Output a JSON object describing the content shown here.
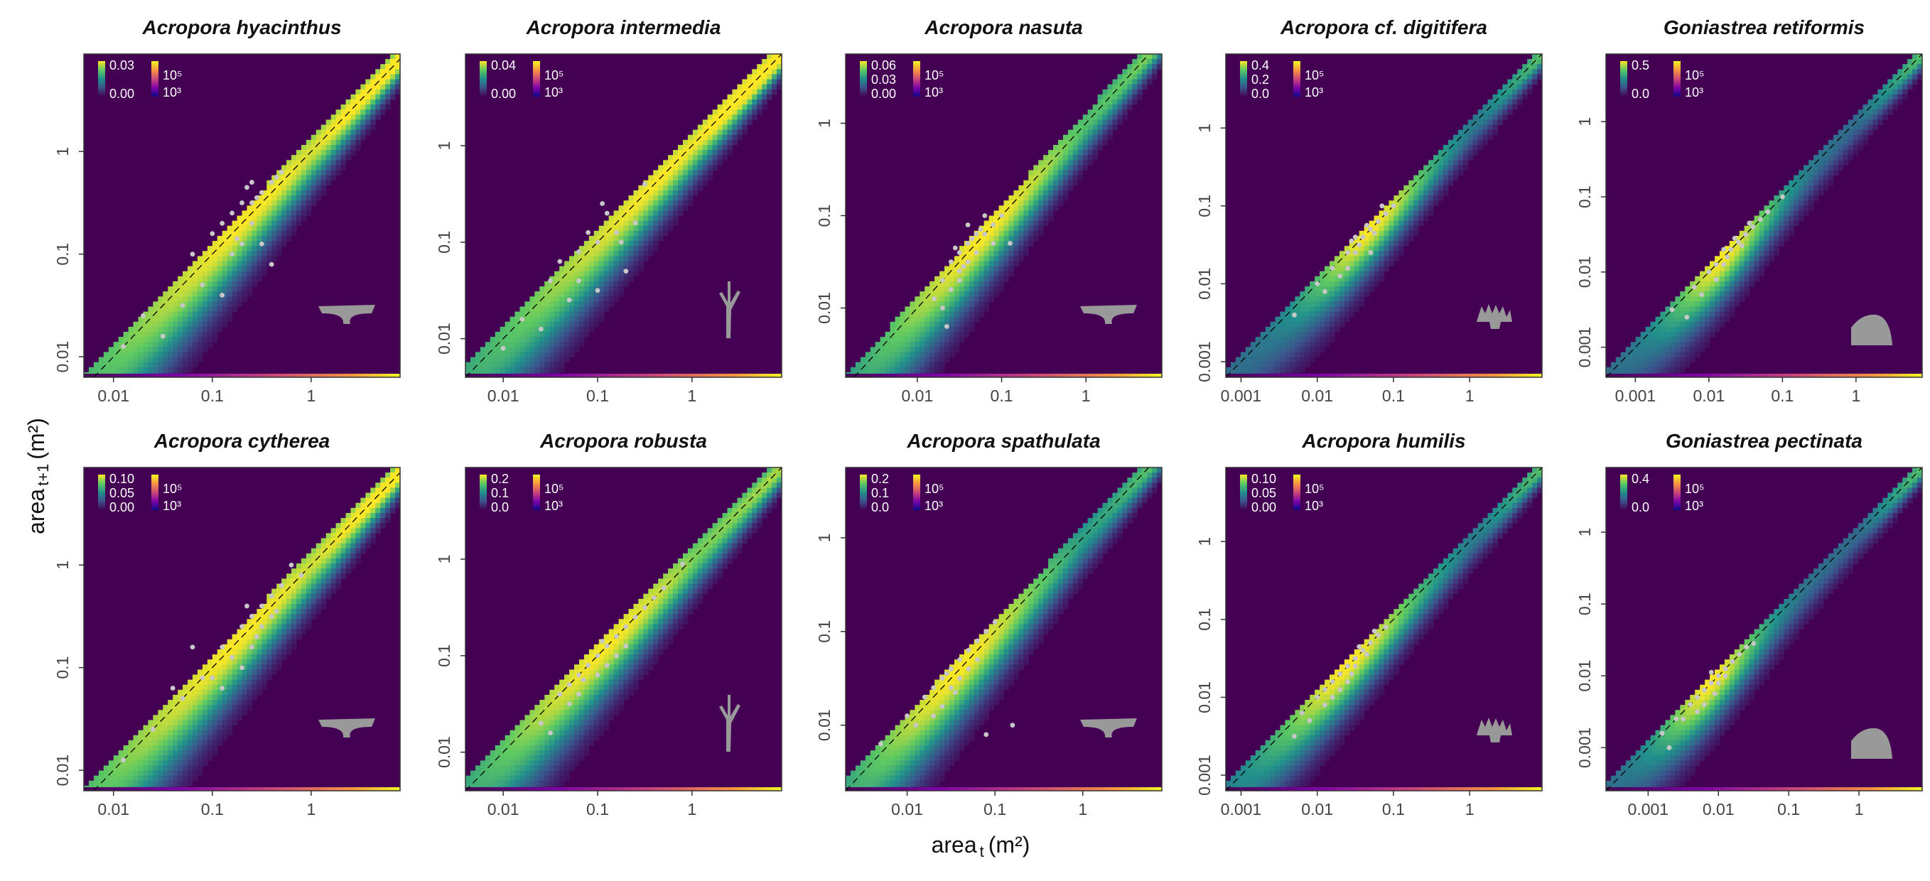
{
  "figure": {
    "xlabel": "area",
    "xlabel_sub": "t",
    "xlabel_unit": "(m²)",
    "ylabel": "area",
    "ylabel_sub": "t+1",
    "ylabel_unit": "(m²)"
  },
  "colors": {
    "background": "#440154",
    "point": "#c8c8c8",
    "silhouette": "#999999",
    "diagonal": "#000000"
  },
  "chart_data": [
    {
      "type": "heatmap",
      "title": "Acropora hyacinthus",
      "xlim_log10": [
        -2.3,
        0.9
      ],
      "ylim_log10": [
        -2.2,
        0.95
      ],
      "xticks": [
        "0.01",
        "0.1",
        "1"
      ],
      "yticks": [
        "0.01",
        "0.1",
        "1"
      ],
      "legend_density": [
        "0.03",
        "0.00"
      ],
      "legend_count": [
        "10⁵",
        "10³"
      ],
      "density_center_log10": -0.6,
      "density_spread": 0.9,
      "silhouette": "table",
      "points": [
        [
          -1.7,
          -1.6
        ],
        [
          -1.2,
          -1.0
        ],
        [
          -1.0,
          -0.8
        ],
        [
          -0.8,
          -0.6
        ],
        [
          -0.6,
          -0.5
        ],
        [
          -0.5,
          -0.4
        ],
        [
          -0.7,
          -0.9
        ],
        [
          -1.1,
          -1.3
        ],
        [
          -0.9,
          -0.7
        ],
        [
          -0.4,
          -0.3
        ],
        [
          -0.3,
          -0.2
        ],
        [
          -0.6,
          -0.7
        ],
        [
          -0.8,
          -1.0
        ],
        [
          -1.3,
          -1.5
        ],
        [
          -0.5,
          -0.9
        ],
        [
          -0.7,
          -0.5
        ],
        [
          -1.5,
          -1.8
        ],
        [
          -0.4,
          -1.1
        ],
        [
          -0.9,
          -1.4
        ],
        [
          -0.6,
          -0.3
        ],
        [
          -0.55,
          -0.45
        ],
        [
          -0.65,
          -0.35
        ],
        [
          -0.35,
          -0.25
        ],
        [
          -1.9,
          -1.9
        ],
        [
          -0.75,
          -0.85
        ]
      ]
    },
    {
      "type": "heatmap",
      "title": "Acropora intermedia",
      "xlim_log10": [
        -2.4,
        0.95
      ],
      "ylim_log10": [
        -2.4,
        0.95
      ],
      "xticks": [
        "0.01",
        "0.1",
        "1"
      ],
      "yticks": [
        "0.01",
        "0.1",
        "1"
      ],
      "legend_density": [
        "0.04",
        "0.00"
      ],
      "legend_count": [
        "10⁵",
        "10³"
      ],
      "density_center_log10": -0.3,
      "density_spread": 1.0,
      "silhouette": "branch",
      "points": [
        [
          -1.8,
          -1.8
        ],
        [
          -1.5,
          -1.4
        ],
        [
          -1.2,
          -1.1
        ],
        [
          -1.0,
          -1.0
        ],
        [
          -0.8,
          -0.9
        ],
        [
          -1.1,
          -0.9
        ],
        [
          -0.9,
          -0.7
        ],
        [
          -0.6,
          -0.8
        ],
        [
          -1.3,
          -1.6
        ],
        [
          -1.4,
          -1.2
        ],
        [
          -0.7,
          -1.3
        ],
        [
          -1.6,
          -1.9
        ],
        [
          -0.5,
          -0.4
        ],
        [
          -1.0,
          -1.5
        ],
        [
          -0.95,
          -0.6
        ],
        [
          -1.2,
          -1.4
        ],
        [
          -0.75,
          -1.0
        ],
        [
          -2.0,
          -2.1
        ]
      ]
    },
    {
      "type": "heatmap",
      "title": "Acropora nasuta",
      "xlim_log10": [
        -2.85,
        0.9
      ],
      "ylim_log10": [
        -2.75,
        0.75
      ],
      "xticks": [
        "0.01",
        "0.1",
        "1"
      ],
      "yticks": [
        "0.01",
        "0.1",
        "1"
      ],
      "legend_density": [
        "0.06",
        "0.03",
        "0.00"
      ],
      "legend_count": [
        "10⁵",
        "10³"
      ],
      "density_center_log10": -1.2,
      "density_spread": 0.7,
      "silhouette": "table",
      "points": [
        [
          -1.7,
          -1.7
        ],
        [
          -1.6,
          -1.5
        ],
        [
          -1.5,
          -1.4
        ],
        [
          -1.4,
          -1.3
        ],
        [
          -1.3,
          -1.2
        ],
        [
          -1.2,
          -1.2
        ],
        [
          -1.5,
          -1.7
        ],
        [
          -1.4,
          -1.5
        ],
        [
          -1.3,
          -1.4
        ],
        [
          -1.6,
          -1.8
        ],
        [
          -1.2,
          -1.0
        ],
        [
          -1.1,
          -1.1
        ],
        [
          -1.7,
          -2.0
        ],
        [
          -1.5,
          -1.6
        ],
        [
          -1.35,
          -1.25
        ],
        [
          -1.25,
          -1.15
        ],
        [
          -1.45,
          -1.55
        ],
        [
          -1.1,
          -1.3
        ],
        [
          -1.55,
          -1.35
        ],
        [
          -1.8,
          -1.9
        ],
        [
          -1.0,
          -1.0
        ],
        [
          -1.65,
          -2.2
        ],
        [
          -0.9,
          -1.3
        ],
        [
          -1.4,
          -1.1
        ]
      ]
    },
    {
      "type": "heatmap",
      "title": "Acropora cf. digitifera",
      "xlim_log10": [
        -3.2,
        0.95
      ],
      "ylim_log10": [
        -3.2,
        0.95
      ],
      "xticks": [
        "0.001",
        "0.01",
        "0.1",
        "1"
      ],
      "yticks": [
        "0.001",
        "0.01",
        "0.1",
        "1"
      ],
      "legend_density": [
        "0.4",
        "0.2",
        "0.0"
      ],
      "legend_count": [
        "10⁵",
        "10³"
      ],
      "density_center_log10": -1.3,
      "density_spread": 0.4,
      "silhouette": "digit",
      "points": [
        [
          -2.0,
          -2.0
        ],
        [
          -1.8,
          -1.8
        ],
        [
          -1.6,
          -1.6
        ],
        [
          -1.5,
          -1.4
        ],
        [
          -1.4,
          -1.4
        ],
        [
          -1.3,
          -1.3
        ],
        [
          -1.2,
          -1.2
        ],
        [
          -1.1,
          -1.1
        ],
        [
          -1.0,
          -1.0
        ],
        [
          -1.6,
          -1.8
        ],
        [
          -1.5,
          -1.6
        ],
        [
          -1.35,
          -1.25
        ],
        [
          -1.25,
          -1.35
        ],
        [
          -1.45,
          -1.5
        ],
        [
          -1.7,
          -1.9
        ],
        [
          -1.9,
          -2.1
        ],
        [
          -1.3,
          -1.6
        ],
        [
          -1.55,
          -1.45
        ],
        [
          -2.3,
          -2.4
        ],
        [
          -1.15,
          -1.0
        ]
      ]
    },
    {
      "type": "heatmap",
      "title": "Goniastrea retiformis",
      "xlim_log10": [
        -3.4,
        0.9
      ],
      "ylim_log10": [
        -3.4,
        0.9
      ],
      "xticks": [
        "0.001",
        "0.01",
        "0.1",
        "1"
      ],
      "yticks": [
        "0.001",
        "0.01",
        "0.1",
        "1"
      ],
      "legend_density": [
        "0.5",
        "0.0"
      ],
      "legend_count": [
        "10⁵",
        "10³"
      ],
      "density_center_log10": -1.8,
      "density_spread": 0.35,
      "silhouette": "dome",
      "points": [
        [
          -2.5,
          -2.5
        ],
        [
          -2.2,
          -2.2
        ],
        [
          -2.0,
          -2.0
        ],
        [
          -1.9,
          -1.9
        ],
        [
          -1.8,
          -1.7
        ],
        [
          -1.7,
          -1.7
        ],
        [
          -1.6,
          -1.6
        ],
        [
          -1.5,
          -1.5
        ],
        [
          -1.4,
          -1.4
        ],
        [
          -1.3,
          -1.3
        ],
        [
          -1.8,
          -1.9
        ],
        [
          -1.9,
          -2.1
        ],
        [
          -2.1,
          -2.3
        ],
        [
          -1.65,
          -1.55
        ],
        [
          -1.55,
          -1.65
        ],
        [
          -1.2,
          -1.2
        ],
        [
          -1.0,
          -1.0
        ],
        [
          -2.3,
          -2.6
        ],
        [
          -1.75,
          -1.8
        ],
        [
          -1.45,
          -1.35
        ]
      ]
    },
    {
      "type": "heatmap",
      "title": "Acropora cytherea",
      "xlim_log10": [
        -2.3,
        0.9
      ],
      "ylim_log10": [
        -2.2,
        0.95
      ],
      "xticks": [
        "0.01",
        "0.1",
        "1"
      ],
      "yticks": [
        "0.01",
        "0.1",
        "1"
      ],
      "legend_density": [
        "0.10",
        "0.05",
        "0.00"
      ],
      "legend_count": [
        "10⁵",
        "10³"
      ],
      "density_center_log10": -0.7,
      "density_spread": 0.9,
      "silhouette": "table",
      "points": [
        [
          -1.9,
          -1.9
        ],
        [
          -1.6,
          -1.6
        ],
        [
          -1.3,
          -1.3
        ],
        [
          -1.1,
          -1.1
        ],
        [
          -0.9,
          -0.8
        ],
        [
          -0.7,
          -0.6
        ],
        [
          -0.6,
          -0.5
        ],
        [
          -0.5,
          -0.4
        ],
        [
          -0.4,
          -0.3
        ],
        [
          -0.3,
          -0.2
        ],
        [
          -0.8,
          -0.9
        ],
        [
          -1.0,
          -1.1
        ],
        [
          -0.6,
          -0.8
        ],
        [
          -0.5,
          -0.6
        ],
        [
          -0.2,
          0.0
        ],
        [
          -1.2,
          -0.8
        ],
        [
          -0.7,
          -1.0
        ],
        [
          -0.9,
          -1.2
        ],
        [
          -0.4,
          -0.5
        ],
        [
          -0.1,
          -0.1
        ],
        [
          -1.4,
          -1.2
        ],
        [
          -0.65,
          -0.4
        ],
        [
          -0.55,
          -0.7
        ],
        [
          -0.35,
          -0.45
        ]
      ]
    },
    {
      "type": "heatmap",
      "title": "Acropora robusta",
      "xlim_log10": [
        -2.4,
        0.95
      ],
      "ylim_log10": [
        -2.4,
        0.95
      ],
      "xticks": [
        "0.01",
        "0.1",
        "1"
      ],
      "yticks": [
        "0.01",
        "0.1",
        "1"
      ],
      "legend_density": [
        "0.2",
        "0.1",
        "0.0"
      ],
      "legend_count": [
        "10⁵",
        "10³"
      ],
      "density_center_log10": -0.9,
      "density_spread": 0.7,
      "silhouette": "branch",
      "points": [
        [
          -1.6,
          -1.7
        ],
        [
          -1.4,
          -1.4
        ],
        [
          -1.3,
          -1.3
        ],
        [
          -1.2,
          -1.2
        ],
        [
          -1.1,
          -1.1
        ],
        [
          -1.0,
          -1.0
        ],
        [
          -0.9,
          -0.9
        ],
        [
          -0.8,
          -0.8
        ],
        [
          -0.7,
          -0.7
        ],
        [
          -0.6,
          -0.6
        ],
        [
          -0.5,
          -0.5
        ],
        [
          -1.2,
          -1.4
        ],
        [
          -1.0,
          -1.2
        ],
        [
          -0.9,
          -1.1
        ],
        [
          -0.8,
          -1.0
        ],
        [
          -1.3,
          -1.5
        ],
        [
          -0.7,
          -0.9
        ],
        [
          -0.4,
          -0.4
        ],
        [
          -1.5,
          -1.8
        ],
        [
          -0.95,
          -0.85
        ],
        [
          -1.15,
          -1.25
        ],
        [
          -0.3,
          -0.3
        ],
        [
          -0.1,
          -0.05
        ]
      ]
    },
    {
      "type": "heatmap",
      "title": "Acropora spathulata",
      "xlim_log10": [
        -2.7,
        0.9
      ],
      "ylim_log10": [
        -2.7,
        0.75
      ],
      "xticks": [
        "0.01",
        "0.1",
        "1"
      ],
      "yticks": [
        "0.01",
        "0.1",
        "1"
      ],
      "legend_density": [
        "0.2",
        "0.1",
        "0.0"
      ],
      "legend_count": [
        "10⁵",
        "10³"
      ],
      "density_center_log10": -1.4,
      "density_spread": 0.6,
      "silhouette": "table",
      "points": [
        [
          -2.3,
          -2.2
        ],
        [
          -2.0,
          -1.9
        ],
        [
          -1.8,
          -1.7
        ],
        [
          -1.7,
          -1.6
        ],
        [
          -1.6,
          -1.5
        ],
        [
          -1.5,
          -1.4
        ],
        [
          -1.4,
          -1.3
        ],
        [
          -1.3,
          -1.2
        ],
        [
          -1.2,
          -1.1
        ],
        [
          -1.1,
          -1.0
        ],
        [
          -1.6,
          -1.8
        ],
        [
          -1.5,
          -1.6
        ],
        [
          -1.4,
          -1.5
        ],
        [
          -1.7,
          -1.9
        ],
        [
          -1.3,
          -1.4
        ],
        [
          -1.9,
          -2.0
        ],
        [
          -1.2,
          -1.3
        ],
        [
          -1.0,
          -0.9
        ],
        [
          -1.45,
          -1.65
        ],
        [
          -1.55,
          -1.45
        ],
        [
          -0.8,
          -2.0
        ],
        [
          -1.1,
          -2.1
        ]
      ]
    },
    {
      "type": "heatmap",
      "title": "Acropora humilis",
      "xlim_log10": [
        -3.2,
        0.95
      ],
      "ylim_log10": [
        -3.2,
        0.95
      ],
      "xticks": [
        "0.001",
        "0.01",
        "0.1",
        "1"
      ],
      "yticks": [
        "0.001",
        "0.01",
        "0.1",
        "1"
      ],
      "legend_density": [
        "0.10",
        "0.05",
        "0.00"
      ],
      "legend_count": [
        "10⁵",
        "10³"
      ],
      "density_center_log10": -1.6,
      "density_spread": 0.5,
      "silhouette": "digit",
      "points": [
        [
          -2.2,
          -2.2
        ],
        [
          -2.0,
          -2.0
        ],
        [
          -1.9,
          -1.9
        ],
        [
          -1.8,
          -1.8
        ],
        [
          -1.7,
          -1.7
        ],
        [
          -1.6,
          -1.6
        ],
        [
          -1.5,
          -1.5
        ],
        [
          -1.4,
          -1.4
        ],
        [
          -1.3,
          -1.3
        ],
        [
          -1.2,
          -1.2
        ],
        [
          -1.8,
          -2.0
        ],
        [
          -1.9,
          -2.1
        ],
        [
          -1.7,
          -1.9
        ],
        [
          -1.6,
          -1.8
        ],
        [
          -2.1,
          -2.3
        ],
        [
          -1.5,
          -1.6
        ],
        [
          -1.45,
          -1.35
        ],
        [
          -1.35,
          -1.45
        ],
        [
          -1.1,
          -1.1
        ],
        [
          -2.3,
          -2.5
        ],
        [
          -1.55,
          -1.7
        ],
        [
          -1.25,
          -1.15
        ]
      ]
    },
    {
      "type": "heatmap",
      "title": "Goniastrea pectinata",
      "xlim_log10": [
        -3.6,
        0.9
      ],
      "ylim_log10": [
        -3.6,
        0.9
      ],
      "xticks": [
        "0.001",
        "0.01",
        "0.1",
        "1"
      ],
      "yticks": [
        "0.001",
        "0.01",
        "0.1",
        "1"
      ],
      "legend_density": [
        "0.4",
        "0.0"
      ],
      "legend_count": [
        "10⁵",
        "10³"
      ],
      "density_center_log10": -2.1,
      "density_spread": 0.35,
      "silhouette": "dome",
      "points": [
        [
          -2.8,
          -2.8
        ],
        [
          -2.6,
          -2.6
        ],
        [
          -2.4,
          -2.4
        ],
        [
          -2.3,
          -2.3
        ],
        [
          -2.2,
          -2.2
        ],
        [
          -2.1,
          -2.1
        ],
        [
          -2.0,
          -2.0
        ],
        [
          -1.9,
          -1.9
        ],
        [
          -1.8,
          -1.8
        ],
        [
          -1.7,
          -1.7
        ],
        [
          -1.6,
          -1.6
        ],
        [
          -2.2,
          -2.4
        ],
        [
          -2.3,
          -2.5
        ],
        [
          -2.0,
          -2.1
        ],
        [
          -1.9,
          -2.0
        ],
        [
          -2.1,
          -1.95
        ],
        [
          -2.5,
          -2.6
        ],
        [
          -1.5,
          -1.55
        ],
        [
          -2.7,
          -3.0
        ],
        [
          -2.05,
          -2.25
        ]
      ]
    }
  ]
}
